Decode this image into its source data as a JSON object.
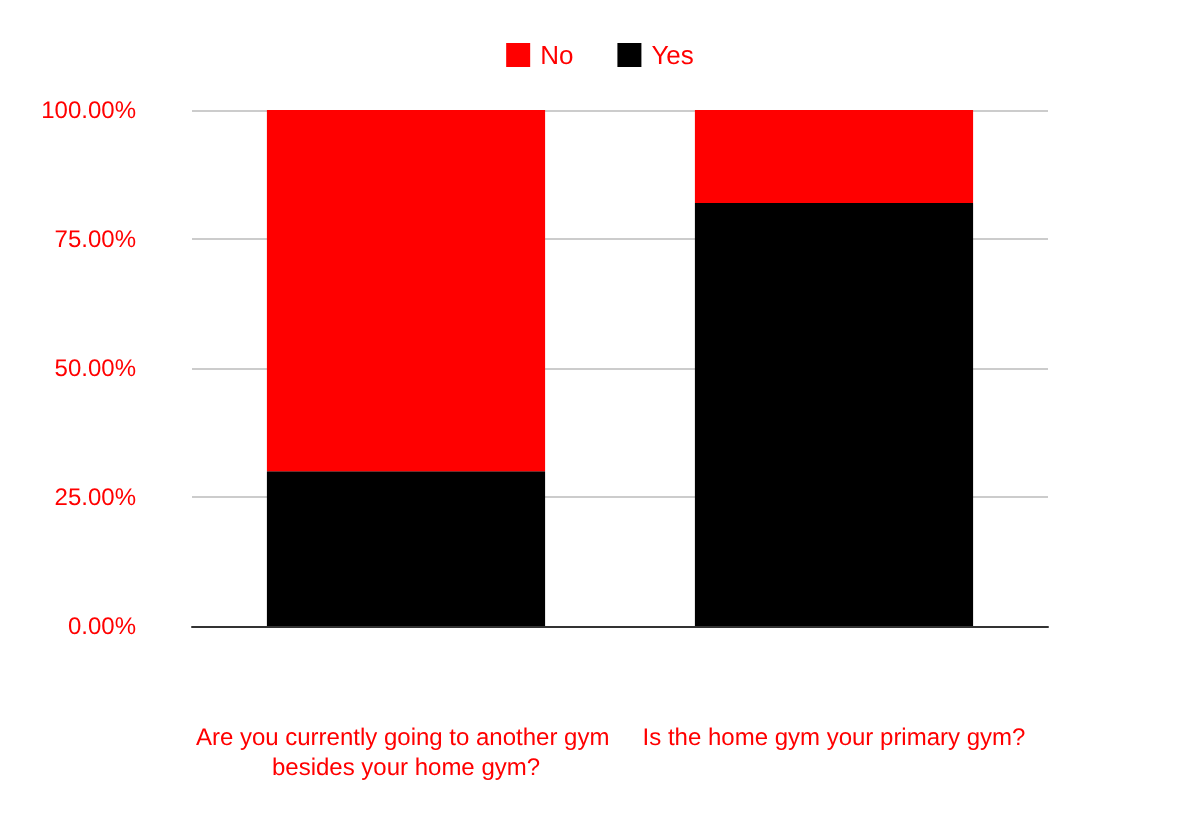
{
  "chart_data": {
    "type": "bar",
    "categories": [
      "Are you currently going to another gym besides your home gym?",
      "Is the home gym your primary gym?"
    ],
    "series": [
      {
        "name": "Yes",
        "color": "#000000",
        "values": [
          30,
          82
        ]
      },
      {
        "name": "No",
        "color": "#ff0000",
        "values": [
          70,
          18
        ]
      }
    ],
    "stacked": true,
    "ylim": [
      0,
      100
    ],
    "yticks": [
      {
        "value": 0,
        "label": "0.00%"
      },
      {
        "value": 25,
        "label": "25.00%"
      },
      {
        "value": 50,
        "label": "50.00%"
      },
      {
        "value": 75,
        "label": "75.00%"
      },
      {
        "value": 100,
        "label": "100.00%"
      }
    ],
    "grid": "y",
    "legend": "top"
  }
}
